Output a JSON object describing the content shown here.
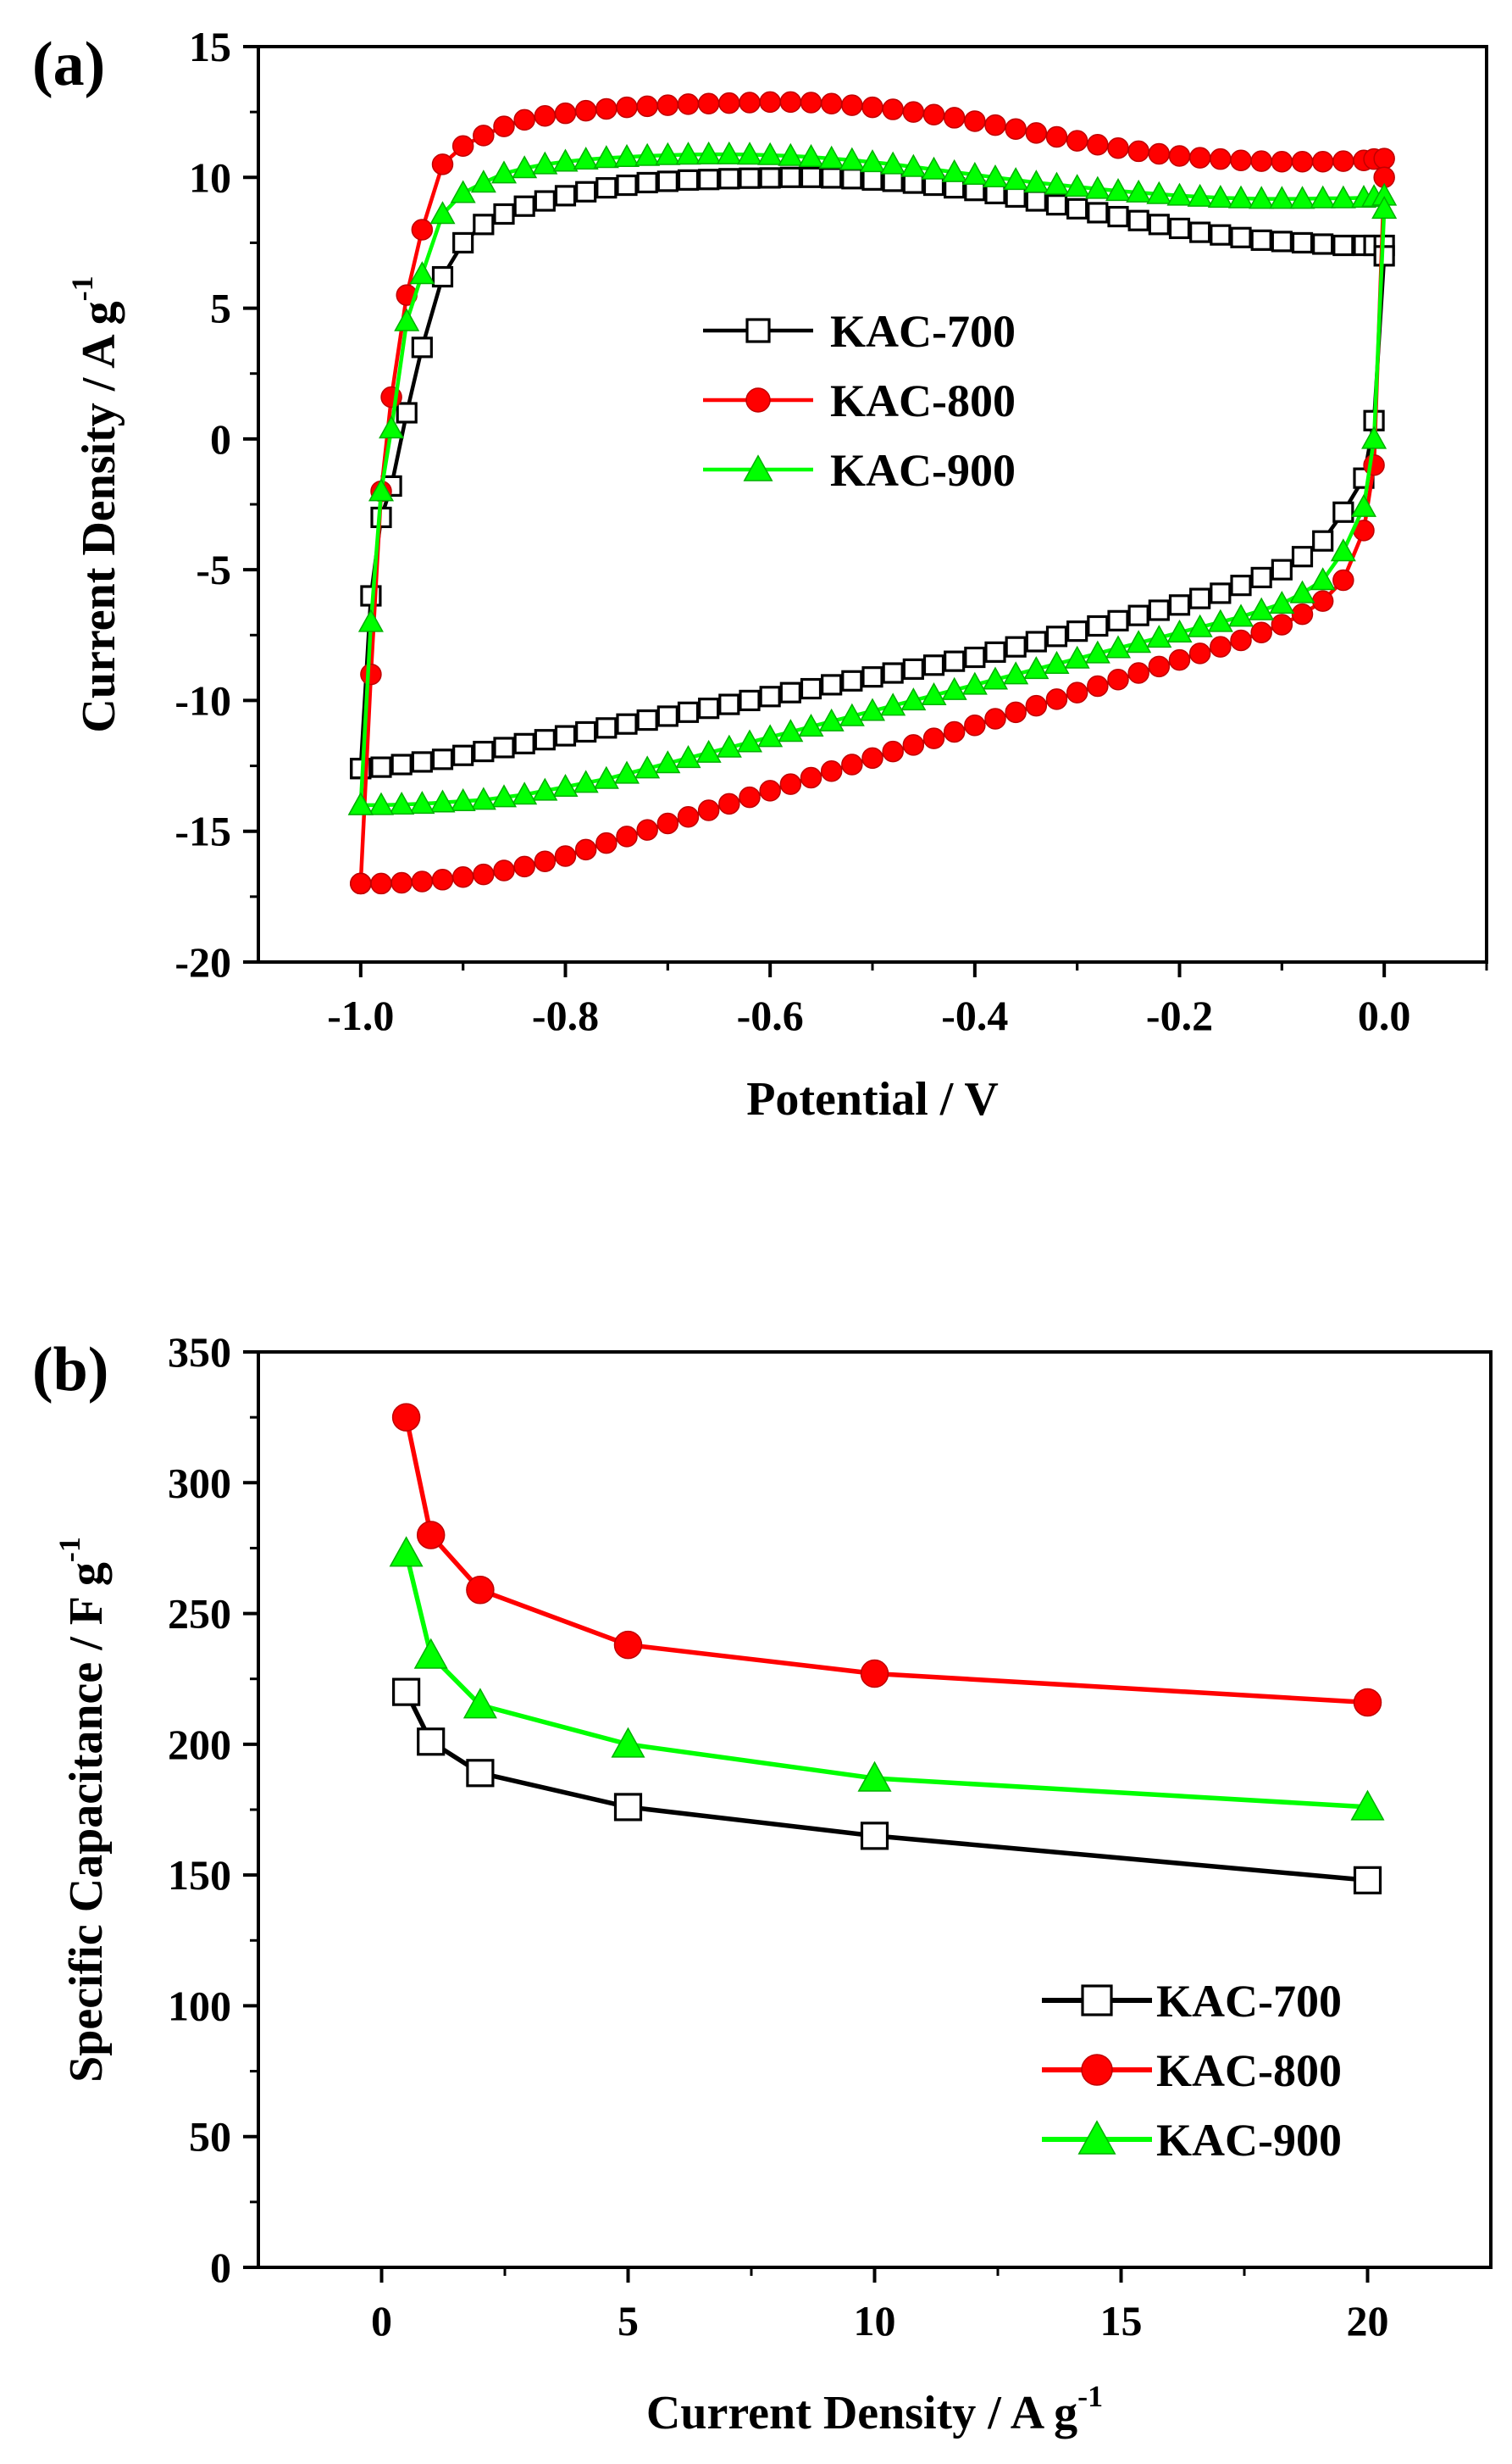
{
  "chart_data": [
    {
      "panel_label": "(a)",
      "type": "line",
      "title": "",
      "xlabel": "Potential / V",
      "ylabel": "Current Density / A g",
      "ylabel_superscript": "-1",
      "xlim": [
        -1.1,
        0.1
      ],
      "ylim": [
        -20,
        15
      ],
      "x_ticks": [
        -1.0,
        -0.8,
        -0.6,
        -0.4,
        -0.2,
        0.0
      ],
      "x_tick_labels": [
        "-1.0",
        "-0.8",
        "-0.6",
        "-0.4",
        "-0.2",
        "0.0"
      ],
      "y_ticks": [
        -20,
        -15,
        -10,
        -5,
        0,
        5,
        10,
        15
      ],
      "y_tick_labels": [
        "-20",
        "-15",
        "-10",
        "-5",
        "0",
        "5",
        "10",
        "15"
      ],
      "grid": false,
      "legend_position": "center",
      "series": [
        {
          "name": "KAC-700",
          "color": "#000000",
          "marker": "open-square",
          "x": [
            -1.0,
            -0.99,
            -0.98,
            -0.97,
            -0.955,
            -0.94,
            -0.92,
            -0.9,
            -0.88,
            -0.86,
            -0.84,
            -0.82,
            -0.8,
            -0.78,
            -0.76,
            -0.74,
            -0.72,
            -0.7,
            -0.68,
            -0.66,
            -0.64,
            -0.62,
            -0.6,
            -0.58,
            -0.56,
            -0.54,
            -0.52,
            -0.5,
            -0.48,
            -0.46,
            -0.44,
            -0.42,
            -0.4,
            -0.38,
            -0.36,
            -0.34,
            -0.32,
            -0.3,
            -0.28,
            -0.26,
            -0.24,
            -0.22,
            -0.2,
            -0.18,
            -0.16,
            -0.14,
            -0.12,
            -0.1,
            -0.08,
            -0.06,
            -0.04,
            -0.02,
            -0.01,
            0.0,
            0.0,
            -0.01,
            -0.02,
            -0.04,
            -0.06,
            -0.08,
            -0.1,
            -0.12,
            -0.14,
            -0.16,
            -0.18,
            -0.2,
            -0.22,
            -0.24,
            -0.26,
            -0.28,
            -0.3,
            -0.32,
            -0.34,
            -0.36,
            -0.38,
            -0.4,
            -0.42,
            -0.44,
            -0.46,
            -0.48,
            -0.5,
            -0.52,
            -0.54,
            -0.56,
            -0.58,
            -0.6,
            -0.62,
            -0.64,
            -0.66,
            -0.68,
            -0.7,
            -0.72,
            -0.74,
            -0.76,
            -0.78,
            -0.8,
            -0.82,
            -0.84,
            -0.86,
            -0.88,
            -0.9,
            -0.92,
            -0.94,
            -0.96,
            -0.98,
            -1.0,
            -1.0
          ],
          "y": [
            -12.6,
            -6.0,
            -3.0,
            -1.8,
            1.0,
            3.5,
            6.2,
            7.5,
            8.2,
            8.6,
            8.9,
            9.1,
            9.3,
            9.45,
            9.6,
            9.7,
            9.8,
            9.85,
            9.9,
            9.92,
            9.95,
            9.97,
            9.98,
            10.0,
            10.0,
            9.98,
            9.95,
            9.9,
            9.85,
            9.78,
            9.7,
            9.6,
            9.5,
            9.38,
            9.25,
            9.1,
            8.95,
            8.8,
            8.65,
            8.5,
            8.35,
            8.2,
            8.05,
            7.9,
            7.8,
            7.7,
            7.6,
            7.55,
            7.5,
            7.45,
            7.4,
            7.4,
            7.4,
            7.4,
            7.0,
            0.7,
            -1.5,
            -2.8,
            -3.9,
            -4.5,
            -5.0,
            -5.3,
            -5.6,
            -5.9,
            -6.1,
            -6.35,
            -6.55,
            -6.75,
            -6.95,
            -7.15,
            -7.35,
            -7.55,
            -7.75,
            -7.95,
            -8.15,
            -8.35,
            -8.5,
            -8.65,
            -8.8,
            -8.95,
            -9.1,
            -9.25,
            -9.4,
            -9.55,
            -9.7,
            -9.85,
            -10.0,
            -10.15,
            -10.3,
            -10.45,
            -10.6,
            -10.75,
            -10.9,
            -11.05,
            -11.2,
            -11.35,
            -11.5,
            -11.65,
            -11.8,
            -11.95,
            -12.1,
            -12.25,
            -12.35,
            -12.45,
            -12.55,
            -12.6,
            -12.6
          ]
        },
        {
          "name": "KAC-800",
          "color": "#ff0000",
          "marker": "filled-circle",
          "x": [
            -1.0,
            -0.99,
            -0.98,
            -0.97,
            -0.955,
            -0.94,
            -0.92,
            -0.9,
            -0.88,
            -0.86,
            -0.84,
            -0.82,
            -0.8,
            -0.78,
            -0.76,
            -0.74,
            -0.72,
            -0.7,
            -0.68,
            -0.66,
            -0.64,
            -0.62,
            -0.6,
            -0.58,
            -0.56,
            -0.54,
            -0.52,
            -0.5,
            -0.48,
            -0.46,
            -0.44,
            -0.42,
            -0.4,
            -0.38,
            -0.36,
            -0.34,
            -0.32,
            -0.3,
            -0.28,
            -0.26,
            -0.24,
            -0.22,
            -0.2,
            -0.18,
            -0.16,
            -0.14,
            -0.12,
            -0.1,
            -0.08,
            -0.06,
            -0.04,
            -0.02,
            -0.01,
            0.0,
            0.0,
            -0.01,
            -0.02,
            -0.04,
            -0.06,
            -0.08,
            -0.1,
            -0.12,
            -0.14,
            -0.16,
            -0.18,
            -0.2,
            -0.22,
            -0.24,
            -0.26,
            -0.28,
            -0.3,
            -0.32,
            -0.34,
            -0.36,
            -0.38,
            -0.4,
            -0.42,
            -0.44,
            -0.46,
            -0.48,
            -0.5,
            -0.52,
            -0.54,
            -0.56,
            -0.58,
            -0.6,
            -0.62,
            -0.64,
            -0.66,
            -0.68,
            -0.7,
            -0.72,
            -0.74,
            -0.76,
            -0.78,
            -0.8,
            -0.82,
            -0.84,
            -0.86,
            -0.88,
            -0.9,
            -0.92,
            -0.94,
            -0.96,
            -0.98,
            -1.0,
            -1.0
          ],
          "y": [
            -17.0,
            -9.0,
            -2.0,
            1.6,
            5.5,
            8.0,
            10.5,
            11.2,
            11.6,
            11.95,
            12.2,
            12.35,
            12.45,
            12.55,
            12.62,
            12.68,
            12.72,
            12.76,
            12.8,
            12.82,
            12.84,
            12.86,
            12.88,
            12.88,
            12.86,
            12.82,
            12.76,
            12.68,
            12.6,
            12.5,
            12.4,
            12.28,
            12.15,
            12.0,
            11.85,
            11.7,
            11.55,
            11.4,
            11.25,
            11.12,
            11.0,
            10.9,
            10.82,
            10.75,
            10.7,
            10.65,
            10.62,
            10.6,
            10.6,
            10.6,
            10.62,
            10.65,
            10.7,
            10.72,
            10.0,
            -1.0,
            -3.5,
            -5.4,
            -6.2,
            -6.7,
            -7.1,
            -7.4,
            -7.7,
            -7.95,
            -8.2,
            -8.45,
            -8.7,
            -8.95,
            -9.2,
            -9.45,
            -9.7,
            -9.95,
            -10.2,
            -10.45,
            -10.7,
            -10.95,
            -11.2,
            -11.45,
            -11.7,
            -11.95,
            -12.2,
            -12.45,
            -12.7,
            -12.95,
            -13.2,
            -13.45,
            -13.7,
            -13.95,
            -14.2,
            -14.45,
            -14.7,
            -14.95,
            -15.2,
            -15.45,
            -15.7,
            -15.95,
            -16.15,
            -16.35,
            -16.5,
            -16.65,
            -16.75,
            -16.85,
            -16.92,
            -16.97,
            -17.0,
            -17.0,
            -17.0
          ]
        },
        {
          "name": "KAC-900",
          "color": "#00ff00",
          "marker": "filled-triangle",
          "x": [
            -1.0,
            -0.99,
            -0.98,
            -0.97,
            -0.955,
            -0.94,
            -0.92,
            -0.9,
            -0.88,
            -0.86,
            -0.84,
            -0.82,
            -0.8,
            -0.78,
            -0.76,
            -0.74,
            -0.72,
            -0.7,
            -0.68,
            -0.66,
            -0.64,
            -0.62,
            -0.6,
            -0.58,
            -0.56,
            -0.54,
            -0.52,
            -0.5,
            -0.48,
            -0.46,
            -0.44,
            -0.42,
            -0.4,
            -0.38,
            -0.36,
            -0.34,
            -0.32,
            -0.3,
            -0.28,
            -0.26,
            -0.24,
            -0.22,
            -0.2,
            -0.18,
            -0.16,
            -0.14,
            -0.12,
            -0.1,
            -0.08,
            -0.06,
            -0.04,
            -0.02,
            -0.01,
            0.0,
            0.0,
            -0.01,
            -0.02,
            -0.04,
            -0.06,
            -0.08,
            -0.1,
            -0.12,
            -0.14,
            -0.16,
            -0.18,
            -0.2,
            -0.22,
            -0.24,
            -0.26,
            -0.28,
            -0.3,
            -0.32,
            -0.34,
            -0.36,
            -0.38,
            -0.4,
            -0.42,
            -0.44,
            -0.46,
            -0.48,
            -0.5,
            -0.52,
            -0.54,
            -0.56,
            -0.58,
            -0.6,
            -0.62,
            -0.64,
            -0.66,
            -0.68,
            -0.7,
            -0.72,
            -0.74,
            -0.76,
            -0.78,
            -0.8,
            -0.82,
            -0.84,
            -0.86,
            -0.88,
            -0.9,
            -0.92,
            -0.94,
            -0.96,
            -0.98,
            -1.0,
            -1.0
          ],
          "y": [
            -14.0,
            -7.0,
            -2.0,
            0.4,
            4.5,
            6.3,
            8.6,
            9.4,
            9.8,
            10.15,
            10.35,
            10.5,
            10.6,
            10.68,
            10.74,
            10.78,
            10.82,
            10.85,
            10.87,
            10.88,
            10.88,
            10.87,
            10.85,
            10.82,
            10.78,
            10.72,
            10.66,
            10.58,
            10.5,
            10.4,
            10.3,
            10.2,
            10.1,
            10.0,
            9.9,
            9.8,
            9.72,
            9.64,
            9.56,
            9.48,
            9.42,
            9.36,
            9.3,
            9.26,
            9.22,
            9.2,
            9.18,
            9.18,
            9.18,
            9.2,
            9.2,
            9.22,
            9.25,
            9.3,
            8.8,
            0.0,
            -2.6,
            -4.3,
            -5.4,
            -5.9,
            -6.3,
            -6.55,
            -6.8,
            -7.0,
            -7.2,
            -7.4,
            -7.6,
            -7.8,
            -8.0,
            -8.2,
            -8.4,
            -8.6,
            -8.8,
            -9.0,
            -9.2,
            -9.4,
            -9.6,
            -9.8,
            -10.0,
            -10.2,
            -10.4,
            -10.6,
            -10.8,
            -11.0,
            -11.2,
            -11.4,
            -11.6,
            -11.8,
            -12.0,
            -12.2,
            -12.4,
            -12.6,
            -12.8,
            -13.0,
            -13.15,
            -13.3,
            -13.45,
            -13.6,
            -13.7,
            -13.8,
            -13.85,
            -13.9,
            -13.95,
            -13.98,
            -14.0,
            -14.0,
            -14.0
          ]
        }
      ]
    },
    {
      "panel_label": "(b)",
      "type": "line",
      "title": "",
      "xlabel": "Current Density / A g",
      "xlabel_superscript": "-1",
      "ylabel": "Specific Capacitance / F g",
      "ylabel_superscript": "-1",
      "xlim": [
        -2.5,
        22.5
      ],
      "ylim": [
        0,
        350
      ],
      "x_ticks": [
        0,
        5,
        10,
        15,
        20
      ],
      "x_tick_labels": [
        "0",
        "5",
        "10",
        "15",
        "20"
      ],
      "y_ticks": [
        0,
        50,
        100,
        150,
        200,
        250,
        300,
        350
      ],
      "y_tick_labels": [
        "0",
        "50",
        "100",
        "150",
        "200",
        "250",
        "300",
        "350"
      ],
      "grid": false,
      "legend_position": "bottom-right",
      "series": [
        {
          "name": "KAC-700",
          "color": "#000000",
          "marker": "open-square",
          "x": [
            0.5,
            1,
            2,
            5,
            10,
            20
          ],
          "y": [
            220,
            201,
            189,
            176,
            165,
            148
          ]
        },
        {
          "name": "KAC-800",
          "color": "#ff0000",
          "marker": "filled-circle",
          "x": [
            0.5,
            1,
            2,
            5,
            10,
            20
          ],
          "y": [
            325,
            280,
            259,
            238,
            227,
            216
          ]
        },
        {
          "name": "KAC-900",
          "color": "#00ff00",
          "marker": "filled-triangle",
          "x": [
            0.5,
            1,
            2,
            5,
            10,
            20
          ],
          "y": [
            273,
            234,
            215,
            200,
            187,
            176
          ]
        }
      ]
    }
  ]
}
